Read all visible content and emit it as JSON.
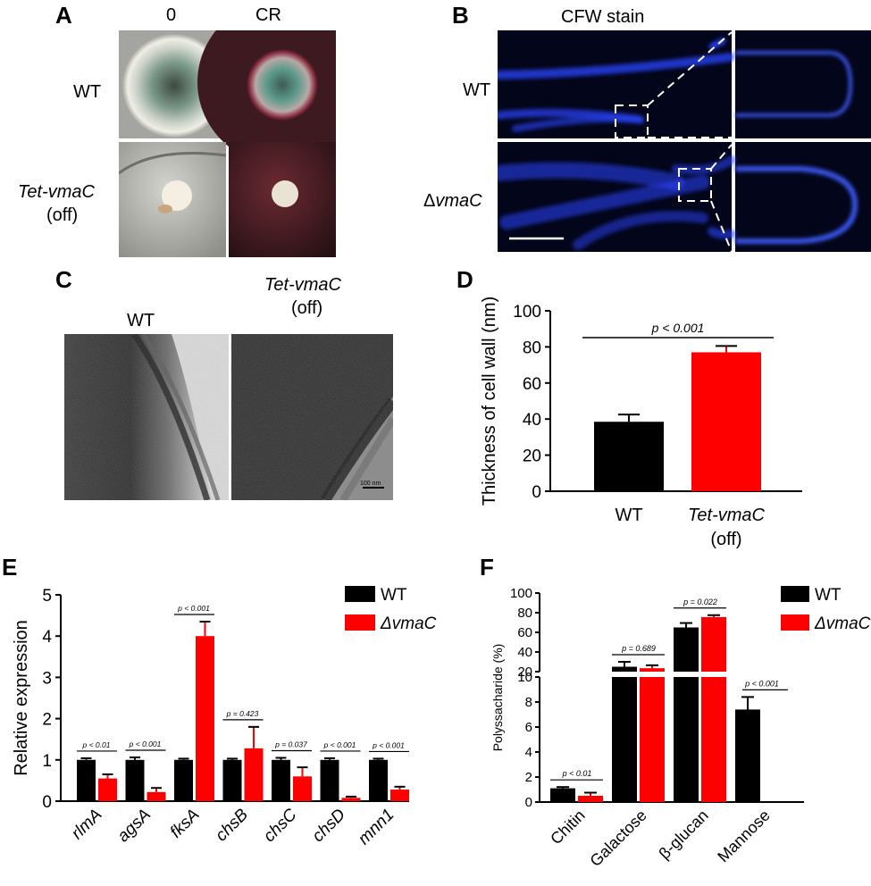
{
  "panels": {
    "A": {
      "letter": "A",
      "col_labels": [
        "0",
        "CR"
      ],
      "row_labels": [
        "WT",
        "Tet-vmaC",
        "(off)"
      ]
    },
    "B": {
      "letter": "B",
      "title": "CFW stain",
      "row_labels": [
        "WT",
        "Δ",
        "vmaC"
      ]
    },
    "C": {
      "letter": "C",
      "labels": [
        "WT",
        "Tet-vmaC",
        "(off)"
      ],
      "scale_bar": "100 nm"
    },
    "D": {
      "letter": "D"
    },
    "E": {
      "letter": "E"
    },
    "F": {
      "letter": "F"
    }
  },
  "colors": {
    "wt": "#000000",
    "mutant": "#ff0000",
    "stain": "#1e3cff"
  },
  "chart_data": [
    {
      "id": "D",
      "type": "bar",
      "categories": [
        "WT",
        "Tet-vmaC"
      ],
      "category_sublabels": [
        "",
        "(off)"
      ],
      "values": [
        38.5,
        77
      ],
      "errors": [
        4,
        3.5
      ],
      "ylabel": "Thickness of cell wall (nm)",
      "ylim": [
        0,
        100
      ],
      "yticks": [
        "0",
        "20",
        "40",
        "60",
        "80",
        "100"
      ],
      "annotation": "p < 0.001"
    },
    {
      "id": "E",
      "type": "bar",
      "categories": [
        "rlmA",
        "agsA",
        "fksA",
        "chsB",
        "chsC",
        "chsD",
        "mnn1"
      ],
      "series": [
        {
          "name": "WT",
          "values": [
            1.0,
            1.0,
            1.0,
            1.0,
            1.0,
            1.0,
            1.0
          ],
          "errors": [
            0.04,
            0.06,
            0.03,
            0.03,
            0.05,
            0.04,
            0.03
          ]
        },
        {
          "name": "ΔvmaC",
          "values": [
            0.55,
            0.22,
            4.0,
            1.28,
            0.6,
            0.08,
            0.28
          ],
          "errors": [
            0.1,
            0.1,
            0.35,
            0.52,
            0.22,
            0.03,
            0.07
          ]
        }
      ],
      "ylabel": "Relative expression",
      "ylim": [
        0,
        5
      ],
      "yticks": [
        "0",
        "1",
        "2",
        "3",
        "4",
        "5"
      ],
      "annotations": [
        "p < 0.01",
        "p < 0.001",
        "p < 0.001",
        "p = 0.423",
        "p = 0.037",
        "p < 0.001",
        "p < 0.001"
      ],
      "legend": [
        "WT",
        "ΔvmaC"
      ]
    },
    {
      "id": "F",
      "type": "bar",
      "categories": [
        "Chitin",
        "Galactose",
        "β-glucan",
        "Mannose"
      ],
      "series": [
        {
          "name": "WT",
          "values": [
            1.1,
            25,
            65,
            7.4
          ],
          "errors": [
            0.1,
            5,
            4.5,
            1
          ]
        },
        {
          "name": "ΔvmaC",
          "values": [
            0.5,
            23.5,
            75.5,
            0
          ],
          "errors": [
            0.25,
            3,
            2,
            0
          ]
        }
      ],
      "ylabel": "Polyssacharide (%)",
      "ylim": [
        0,
        100
      ],
      "axis_break": [
        10,
        20
      ],
      "yticks_upper": [
        "20",
        "40",
        "60",
        "80",
        "100"
      ],
      "yticks_lower": [
        "0",
        "2",
        "4",
        "6",
        "8",
        "10"
      ],
      "annotations": [
        "p < 0.01",
        "p = 0.689",
        "p = 0.022",
        "p < 0.001"
      ],
      "legend": [
        "WT",
        "ΔvmaC"
      ]
    }
  ]
}
